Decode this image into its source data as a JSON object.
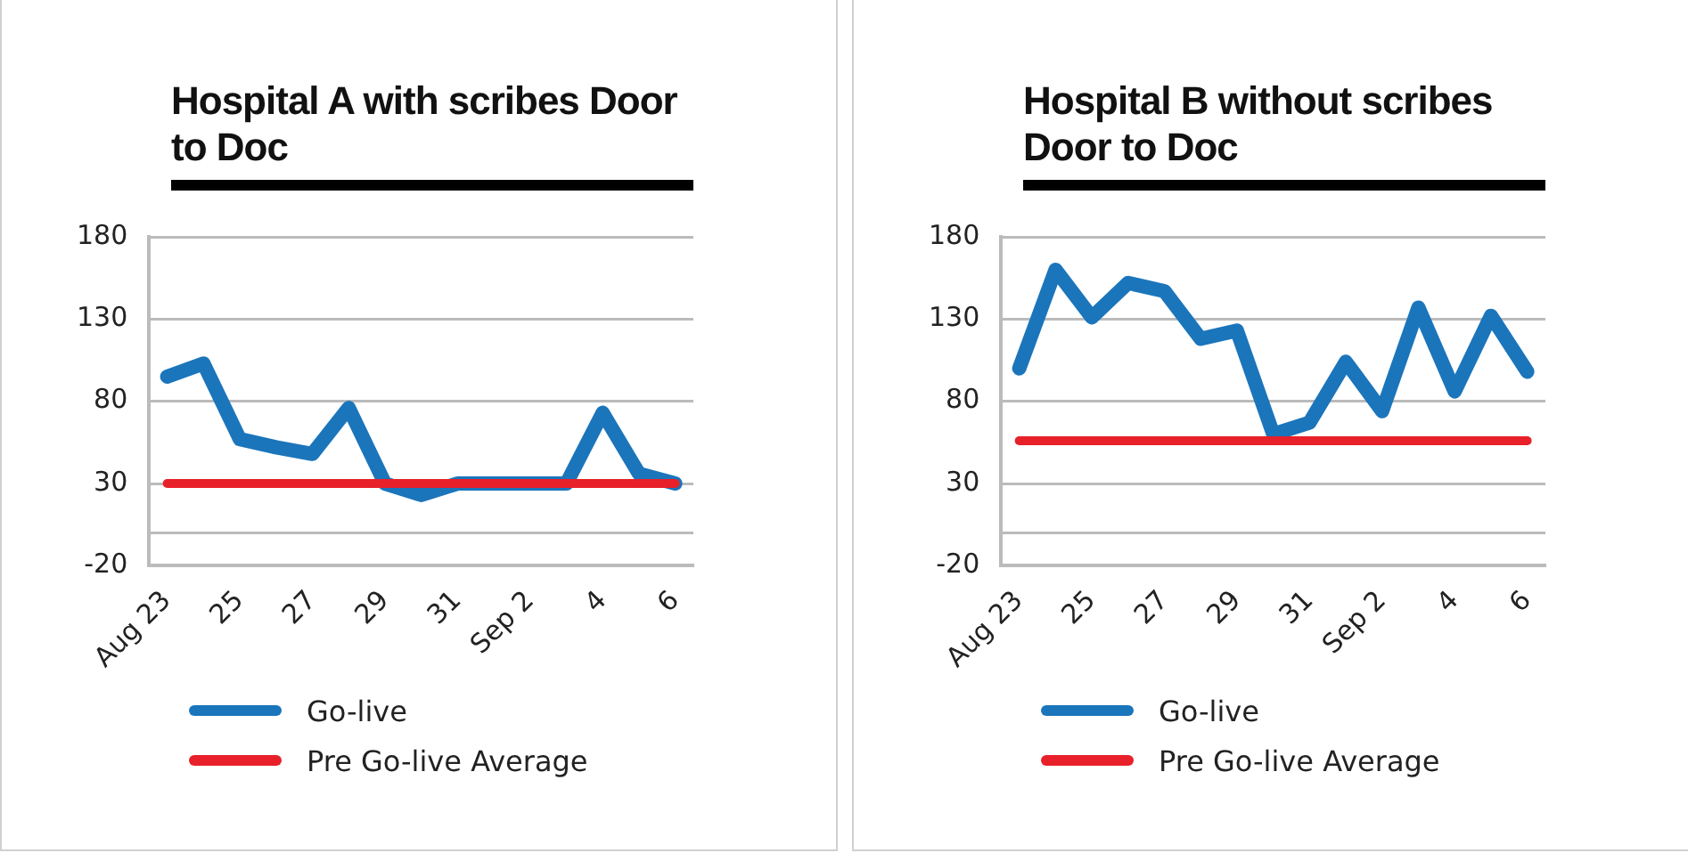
{
  "chart_data": [
    {
      "type": "line",
      "title": "Hospital A with scribes Door to Doc",
      "categories": [
        "Aug 23",
        null,
        "25",
        null,
        "27",
        null,
        "29",
        null,
        "31",
        null,
        "Sep 2",
        null,
        "4",
        null,
        "6"
      ],
      "series": [
        {
          "name": "Go-live",
          "color": "#1b75bb",
          "values": [
            95,
            103,
            57,
            52,
            48,
            76,
            30,
            23,
            30,
            30,
            30,
            30,
            73,
            36,
            30
          ]
        },
        {
          "name": "Pre Go-live Average",
          "color": "#e8202a",
          "values": [
            30,
            30,
            30,
            30,
            30,
            30,
            30,
            30,
            30,
            30,
            30,
            30,
            30,
            30,
            30
          ]
        }
      ],
      "ylim": [
        -20,
        180
      ],
      "yticks": [
        -20,
        {
          "value": 0,
          "label": null
        },
        30,
        80,
        130,
        180
      ],
      "grid": "y",
      "legend": "bottom",
      "marker": "none",
      "line_style": "solid"
    },
    {
      "type": "line",
      "title": "Hospital B without scribes Door to Doc",
      "categories": [
        "Aug 23",
        null,
        "25",
        null,
        "27",
        null,
        "29",
        null,
        "31",
        null,
        "Sep 2",
        null,
        "4",
        null,
        "6"
      ],
      "series": [
        {
          "name": "Go-live",
          "color": "#1b75bb",
          "values": [
            100,
            160,
            131,
            152,
            147,
            118,
            123,
            60,
            67,
            104,
            74,
            137,
            86,
            132,
            98
          ]
        },
        {
          "name": "Pre Go-live Average",
          "color": "#e8202a",
          "values": [
            56,
            56,
            56,
            56,
            56,
            56,
            56,
            56,
            56,
            56,
            56,
            56,
            56,
            56,
            56
          ]
        }
      ],
      "ylim": [
        -20,
        180
      ],
      "yticks": [
        -20,
        {
          "value": 0,
          "label": null
        },
        30,
        80,
        130,
        180
      ],
      "grid": "y",
      "legend": "bottom",
      "marker": "none",
      "line_style": "solid"
    }
  ]
}
